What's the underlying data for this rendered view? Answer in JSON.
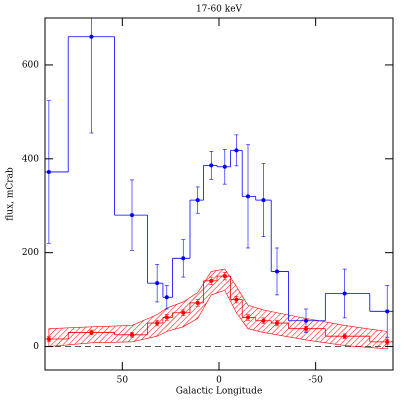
{
  "chart_data": {
    "type": "scatter",
    "title": "17-60 keV",
    "x_label": "Galactic Longitude",
    "y_label": "flux, mCrab",
    "xlim": [
      90,
      -90
    ],
    "ylim": [
      -50,
      700
    ],
    "xticks": [
      50,
      0,
      -50
    ],
    "yticks": [
      0,
      200,
      400,
      600
    ],
    "hline": 0,
    "x": [
      88,
      66,
      45,
      32,
      27,
      18.5,
      11,
      4,
      -3,
      -9,
      -15,
      -23,
      -30,
      -45,
      -65,
      -87
    ],
    "bins": [
      90,
      78,
      54,
      37,
      29,
      24,
      15,
      8,
      1,
      -6,
      -12,
      -19,
      -27,
      -36,
      -55,
      -78,
      -90
    ],
    "series": [
      {
        "color": "#0000ff",
        "values": [
          372,
          660,
          280,
          135,
          105,
          188,
          312,
          386,
          383,
          418,
          320,
          312,
          160,
          55,
          113,
          75
        ],
        "errors": [
          152,
          205,
          75,
          40,
          25,
          40,
          28,
          30,
          37,
          33,
          110,
          78,
          50,
          25,
          52,
          55
        ]
      },
      {
        "color": "#ff0000",
        "values": [
          16,
          30,
          25,
          50,
          62,
          72,
          93,
          140,
          150,
          100,
          62,
          55,
          50,
          38,
          22,
          10
        ],
        "errors": [
          5,
          5,
          5,
          6,
          6,
          6,
          7,
          8,
          8,
          7,
          6,
          6,
          6,
          5,
          5,
          5
        ],
        "band_lower": [
          0,
          8,
          10,
          22,
          32,
          42,
          60,
          110,
          120,
          72,
          38,
          30,
          25,
          14,
          2,
          -5
        ],
        "band_upper": [
          38,
          42,
          45,
          68,
          82,
          95,
          115,
          160,
          165,
          128,
          88,
          78,
          72,
          60,
          45,
          32
        ]
      }
    ]
  }
}
